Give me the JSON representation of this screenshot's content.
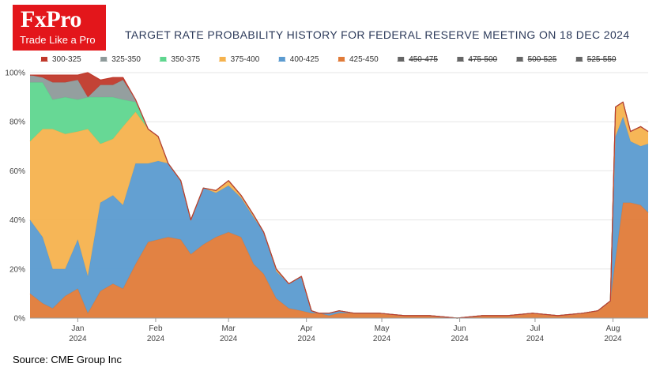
{
  "header": {
    "logo_name": "FxPro",
    "logo_tagline": "Trade Like a Pro",
    "title": "TARGET RATE PROBABILITY HISTORY FOR FEDERAL RESERVE MEETING ON 18 DEC 2024"
  },
  "footer": {
    "source": "Source: CME Group Inc"
  },
  "colors": {
    "logo_bg": "#e3161b",
    "300-325": "#c0392b",
    "325-350": "#8e9a9a",
    "350-375": "#5fd68f",
    "375-400": "#f5b24e",
    "400-425": "#5b9bd0",
    "425-450": "#e07b39",
    "hidden": "#666666"
  },
  "chart_data": {
    "type": "area",
    "stacked": true,
    "title": "TARGET RATE PROBABILITY HISTORY FOR FEDERAL RESERVE MEETING ON 18 DEC 2024",
    "xlabel": "",
    "ylabel": "",
    "ylim": [
      0,
      100
    ],
    "y_ticks": [
      "0%",
      "20%",
      "40%",
      "60%",
      "80%",
      "100%"
    ],
    "x_ticks": [
      {
        "month": "Jan",
        "year": "2024",
        "date": "2024-01-01"
      },
      {
        "month": "Feb",
        "year": "2024",
        "date": "2024-02-01"
      },
      {
        "month": "Mar",
        "year": "2024",
        "date": "2024-03-01"
      },
      {
        "month": "Apr",
        "year": "2024",
        "date": "2024-04-01"
      },
      {
        "month": "May",
        "year": "2024",
        "date": "2024-05-01"
      },
      {
        "month": "Jun",
        "year": "2024",
        "date": "2024-06-01"
      },
      {
        "month": "Jul",
        "year": "2024",
        "date": "2024-07-01"
      },
      {
        "month": "Aug",
        "year": "2024",
        "date": "2024-08-01"
      }
    ],
    "x_range": [
      "2023-12-13",
      "2024-08-15"
    ],
    "legend_position": "top",
    "legend": [
      {
        "name": "300-325",
        "active": true
      },
      {
        "name": "325-350",
        "active": true
      },
      {
        "name": "350-375",
        "active": true
      },
      {
        "name": "375-400",
        "active": true
      },
      {
        "name": "400-425",
        "active": true
      },
      {
        "name": "425-450",
        "active": true
      },
      {
        "name": "450-475",
        "active": false
      },
      {
        "name": "475-500",
        "active": false
      },
      {
        "name": "500-525",
        "active": false
      },
      {
        "name": "525-550",
        "active": false
      }
    ],
    "x": [
      "2023-12-13",
      "2023-12-18",
      "2023-12-22",
      "2023-12-27",
      "2024-01-01",
      "2024-01-05",
      "2024-01-10",
      "2024-01-15",
      "2024-01-19",
      "2024-01-24",
      "2024-01-29",
      "2024-02-02",
      "2024-02-06",
      "2024-02-11",
      "2024-02-15",
      "2024-02-20",
      "2024-02-25",
      "2024-03-01",
      "2024-03-06",
      "2024-03-11",
      "2024-03-15",
      "2024-03-20",
      "2024-03-25",
      "2024-03-30",
      "2024-04-03",
      "2024-04-06",
      "2024-04-10",
      "2024-04-14",
      "2024-04-20",
      "2024-04-30",
      "2024-05-10",
      "2024-05-20",
      "2024-05-31",
      "2024-06-10",
      "2024-06-20",
      "2024-06-30",
      "2024-07-10",
      "2024-07-20",
      "2024-07-26",
      "2024-07-31",
      "2024-08-02",
      "2024-08-05",
      "2024-08-08",
      "2024-08-12",
      "2024-08-15"
    ],
    "series": [
      {
        "name": "425-450",
        "values": [
          10,
          6,
          4,
          9,
          12,
          2,
          11,
          14,
          12,
          22,
          31,
          32,
          33,
          32,
          26,
          30,
          33,
          35,
          33,
          22,
          18,
          8,
          4,
          3,
          2,
          2,
          1,
          2,
          2,
          2,
          1,
          1,
          0,
          1,
          1,
          2,
          1,
          2,
          3,
          7,
          24,
          47,
          47,
          46,
          43
        ]
      },
      {
        "name": "400-425",
        "values": [
          30,
          27,
          16,
          11,
          20,
          15,
          36,
          36,
          34,
          41,
          32,
          32,
          30,
          24,
          14,
          23,
          18,
          19,
          16,
          19,
          17,
          11,
          10,
          14,
          1,
          0,
          1,
          1,
          0,
          0,
          0,
          0,
          0,
          0,
          0,
          0,
          0,
          0,
          0,
          0,
          50,
          35,
          25,
          24,
          28
        ]
      },
      {
        "name": "375-400",
        "values": [
          32,
          44,
          57,
          55,
          44,
          60,
          24,
          23,
          32,
          21,
          14,
          10,
          0,
          0,
          0,
          0,
          1,
          2,
          1,
          1,
          0,
          1,
          0,
          0,
          0,
          0,
          0,
          0,
          0,
          0,
          0,
          0,
          0,
          0,
          0,
          0,
          0,
          0,
          0,
          0,
          12,
          6,
          4,
          8,
          5
        ]
      },
      {
        "name": "350-375",
        "values": [
          24,
          19,
          12,
          15,
          13,
          13,
          19,
          17,
          11,
          4,
          0,
          0,
          0,
          0,
          0,
          0,
          0,
          0,
          0,
          0,
          0,
          0,
          0,
          0,
          0,
          0,
          0,
          0,
          0,
          0,
          0,
          0,
          0,
          0,
          0,
          0,
          0,
          0,
          0,
          0,
          0,
          0,
          0,
          0,
          0
        ]
      },
      {
        "name": "325-350",
        "values": [
          3,
          2,
          7,
          6,
          8,
          0,
          5,
          5,
          8,
          1,
          0,
          0,
          0,
          0,
          0,
          0,
          0,
          0,
          0,
          0,
          0,
          0,
          0,
          0,
          0,
          0,
          0,
          0,
          0,
          0,
          0,
          0,
          0,
          0,
          0,
          0,
          0,
          0,
          0,
          0,
          0,
          0,
          0,
          0,
          0
        ]
      },
      {
        "name": "300-325",
        "values": [
          0,
          1,
          3,
          3,
          2,
          10,
          2,
          3,
          1,
          0,
          0,
          0,
          0,
          0,
          0,
          0,
          0,
          0,
          0,
          0,
          0,
          0,
          0,
          0,
          0,
          0,
          0,
          0,
          0,
          0,
          0,
          0,
          0,
          0,
          0,
          0,
          0,
          0,
          0,
          0,
          0,
          0,
          0,
          0,
          0
        ]
      }
    ]
  }
}
